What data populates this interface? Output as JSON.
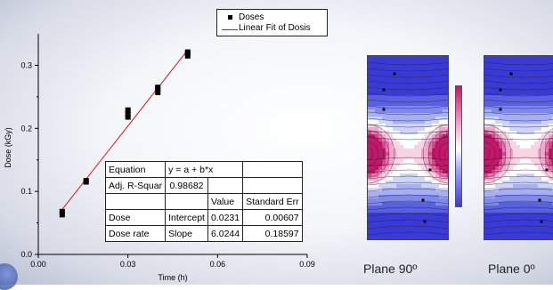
{
  "chart_data": [
    {
      "type": "scatter",
      "xlabel": "Time (h)",
      "ylabel": "Dose (kGy)",
      "xlim": [
        0.0,
        0.09
      ],
      "ylim": [
        0.0,
        0.35
      ],
      "xticks": [
        "0.00",
        "0.03",
        "0.06",
        "0.09"
      ],
      "yticks": [
        "0.0",
        "0.1",
        "0.2",
        "0.3"
      ],
      "legend_position": "top",
      "series": [
        {
          "name": "Doses",
          "marker": "square",
          "color": "#000000",
          "points": [
            [
              0.008,
              0.063
            ],
            [
              0.008,
              0.068
            ],
            [
              0.016,
              0.115
            ],
            [
              0.016,
              0.117
            ],
            [
              0.03,
              0.218
            ],
            [
              0.03,
              0.223
            ],
            [
              0.03,
              0.229
            ],
            [
              0.04,
              0.257
            ],
            [
              0.04,
              0.262
            ],
            [
              0.04,
              0.265
            ],
            [
              0.05,
              0.315
            ],
            [
              0.05,
              0.319
            ],
            [
              0.05,
              0.321
            ]
          ]
        },
        {
          "name": "Linear Fit of Dosis",
          "line": true,
          "color": "#dd1111",
          "intercept": 0.0231,
          "slope": 6.0244,
          "x_range": [
            0.008,
            0.05
          ]
        }
      ],
      "fit_table": {
        "header": [
          "Equation",
          "y = a + b*x"
        ],
        "rsq": [
          "Adj. R-Squar",
          "0.98682"
        ],
        "columns": [
          "Value",
          "Standard Err"
        ],
        "rows": [
          [
            "Dose",
            "Intercept",
            "0.0231",
            "0.00607"
          ],
          [
            "Dose rate",
            "Slope",
            "6.0244",
            "0.18597"
          ]
        ]
      }
    },
    {
      "type": "heatmap",
      "subtype": "contour",
      "caption": "Plane 90º",
      "colormap": [
        "#3a3ad6",
        "#ffffff",
        "#c2186b"
      ]
    },
    {
      "type": "heatmap",
      "subtype": "contour",
      "caption": "Plane 0º",
      "colormap": [
        "#3a3ad6",
        "#ffffff",
        "#c2186b"
      ]
    }
  ]
}
